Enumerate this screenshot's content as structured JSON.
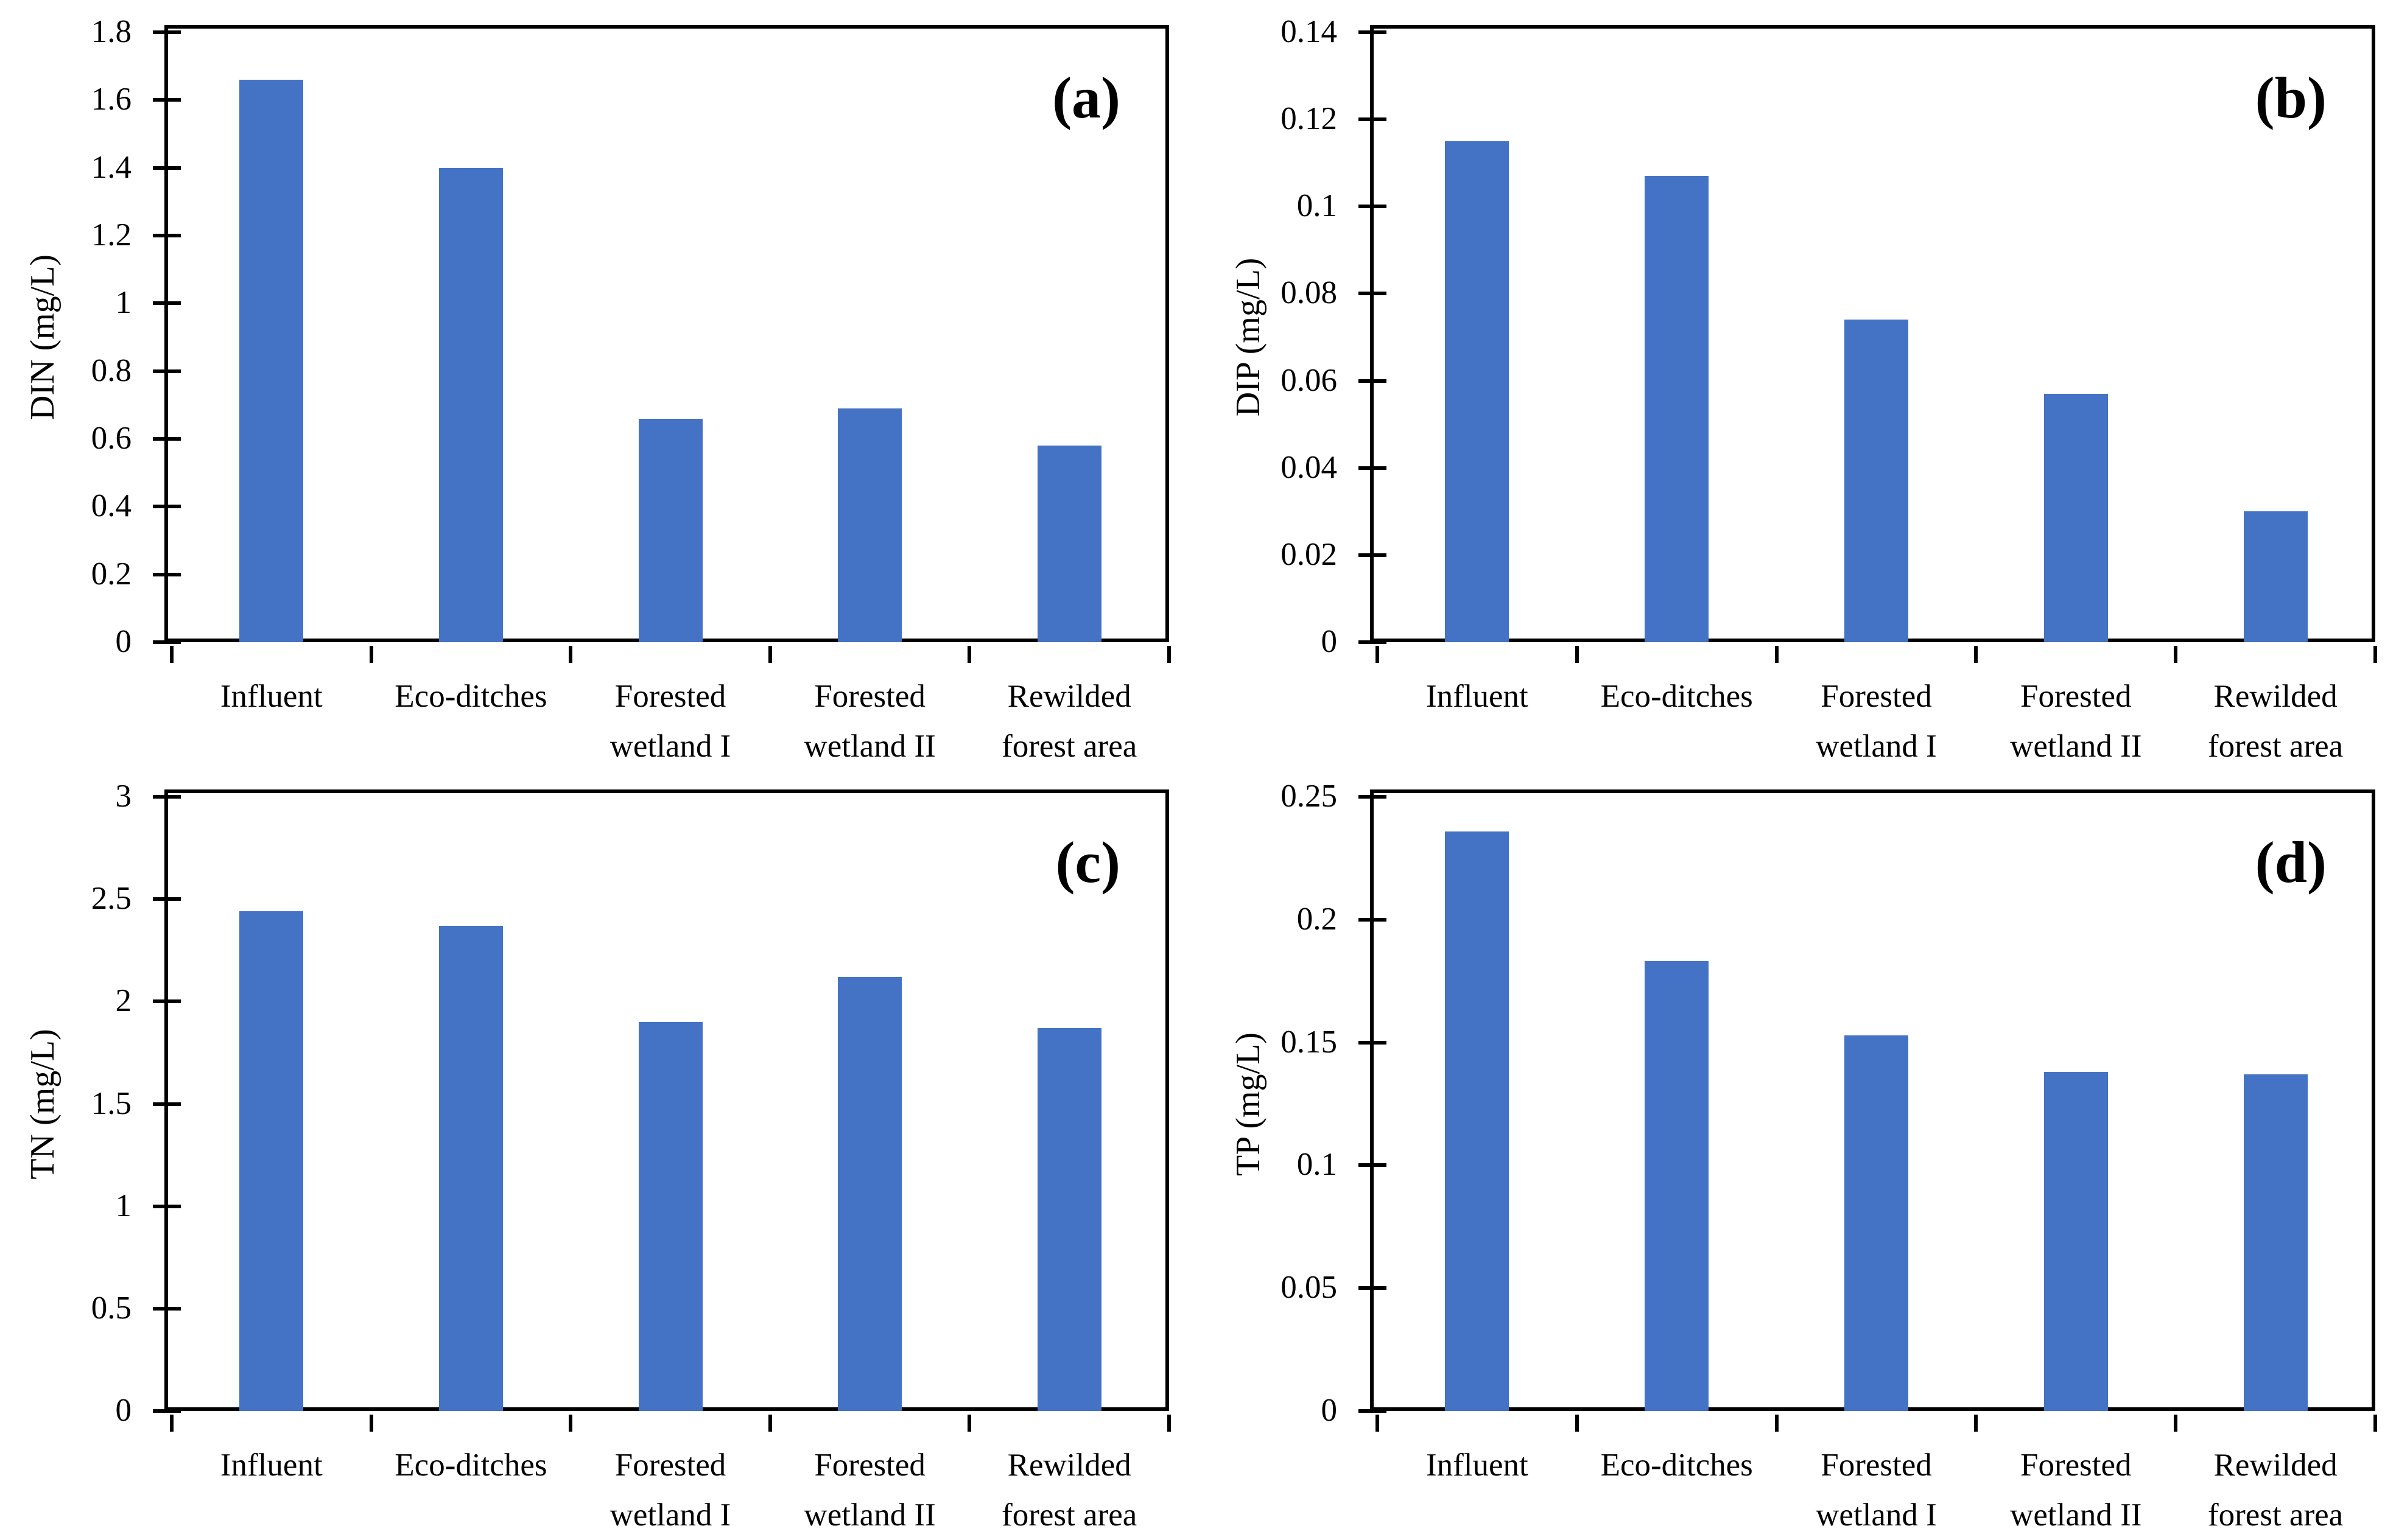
{
  "figure": {
    "background": "#ffffff",
    "bar_color": "#4472C4",
    "axis_color": "#000000",
    "text_color": "#000000"
  },
  "chart_data": [
    {
      "type": "bar",
      "panel_label": "(a)",
      "ylabel": "DIN (mg/L)",
      "xlabel": "",
      "categories": [
        "Influent",
        "Eco-ditches",
        "Forested wetland I",
        "Forested wetland II",
        "Rewilded forest area"
      ],
      "category_lines": [
        [
          "Influent"
        ],
        [
          "Eco-ditches"
        ],
        [
          "Forested",
          "wetland I"
        ],
        [
          "Forested",
          "wetland II"
        ],
        [
          "Rewilded",
          "forest area"
        ]
      ],
      "values": [
        1.66,
        1.4,
        0.66,
        0.69,
        0.58
      ],
      "ylim": [
        0,
        1.8
      ],
      "yticks": [
        {
          "v": 0,
          "label": "0"
        },
        {
          "v": 0.2,
          "label": "0.2"
        },
        {
          "v": 0.4,
          "label": "0.4"
        },
        {
          "v": 0.6,
          "label": "0.6"
        },
        {
          "v": 0.8,
          "label": "0.8"
        },
        {
          "v": 1,
          "label": "1"
        },
        {
          "v": 1.2,
          "label": "1.2"
        },
        {
          "v": 1.4,
          "label": "1.4"
        },
        {
          "v": 1.6,
          "label": "1.6"
        },
        {
          "v": 1.8,
          "label": "1.8"
        }
      ],
      "grid": false,
      "legend": false
    },
    {
      "type": "bar",
      "panel_label": "(b)",
      "ylabel": "DIP (mg/L)",
      "xlabel": "",
      "categories": [
        "Influent",
        "Eco-ditches",
        "Forested wetland I",
        "Forested wetland II",
        "Rewilded forest area"
      ],
      "category_lines": [
        [
          "Influent"
        ],
        [
          "Eco-ditches"
        ],
        [
          "Forested",
          "wetland I"
        ],
        [
          "Forested",
          "wetland II"
        ],
        [
          "Rewilded",
          "forest area"
        ]
      ],
      "values": [
        0.115,
        0.107,
        0.074,
        0.057,
        0.03
      ],
      "ylim": [
        0,
        0.14
      ],
      "yticks": [
        {
          "v": 0,
          "label": "0"
        },
        {
          "v": 0.02,
          "label": "0.02"
        },
        {
          "v": 0.04,
          "label": "0.04"
        },
        {
          "v": 0.06,
          "label": "0.06"
        },
        {
          "v": 0.08,
          "label": "0.08"
        },
        {
          "v": 0.1,
          "label": "0.1"
        },
        {
          "v": 0.12,
          "label": "0.12"
        },
        {
          "v": 0.14,
          "label": "0.14"
        }
      ],
      "grid": false,
      "legend": false
    },
    {
      "type": "bar",
      "panel_label": "(c)",
      "ylabel": "TN (mg/L)",
      "xlabel": "",
      "categories": [
        "Influent",
        "Eco-ditches",
        "Forested wetland I",
        "Forested wetland II",
        "Rewilded forest area"
      ],
      "category_lines": [
        [
          "Influent"
        ],
        [
          "Eco-ditches"
        ],
        [
          "Forested",
          "wetland I"
        ],
        [
          "Forested",
          "wetland II"
        ],
        [
          "Rewilded",
          "forest area"
        ]
      ],
      "values": [
        2.44,
        2.37,
        1.9,
        2.12,
        1.87
      ],
      "ylim": [
        0,
        3
      ],
      "yticks": [
        {
          "v": 0,
          "label": "0"
        },
        {
          "v": 0.5,
          "label": "0.5"
        },
        {
          "v": 1,
          "label": "1"
        },
        {
          "v": 1.5,
          "label": "1.5"
        },
        {
          "v": 2,
          "label": "2"
        },
        {
          "v": 2.5,
          "label": "2.5"
        },
        {
          "v": 3,
          "label": "3"
        }
      ],
      "grid": false,
      "legend": false
    },
    {
      "type": "bar",
      "panel_label": "(d)",
      "ylabel": "TP (mg/L)",
      "xlabel": "",
      "categories": [
        "Influent",
        "Eco-ditches",
        "Forested wetland I",
        "Forested wetland II",
        "Rewilded forest area"
      ],
      "category_lines": [
        [
          "Influent"
        ],
        [
          "Eco-ditches"
        ],
        [
          "Forested",
          "wetland I"
        ],
        [
          "Forested",
          "wetland II"
        ],
        [
          "Rewilded",
          "forest area"
        ]
      ],
      "values": [
        0.236,
        0.183,
        0.153,
        0.138,
        0.137
      ],
      "ylim": [
        0,
        0.25
      ],
      "yticks": [
        {
          "v": 0,
          "label": "0"
        },
        {
          "v": 0.05,
          "label": "0.05"
        },
        {
          "v": 0.1,
          "label": "0.1"
        },
        {
          "v": 0.15,
          "label": "0.15"
        },
        {
          "v": 0.2,
          "label": "0.2"
        },
        {
          "v": 0.25,
          "label": "0.25"
        }
      ],
      "grid": false,
      "legend": false
    }
  ]
}
